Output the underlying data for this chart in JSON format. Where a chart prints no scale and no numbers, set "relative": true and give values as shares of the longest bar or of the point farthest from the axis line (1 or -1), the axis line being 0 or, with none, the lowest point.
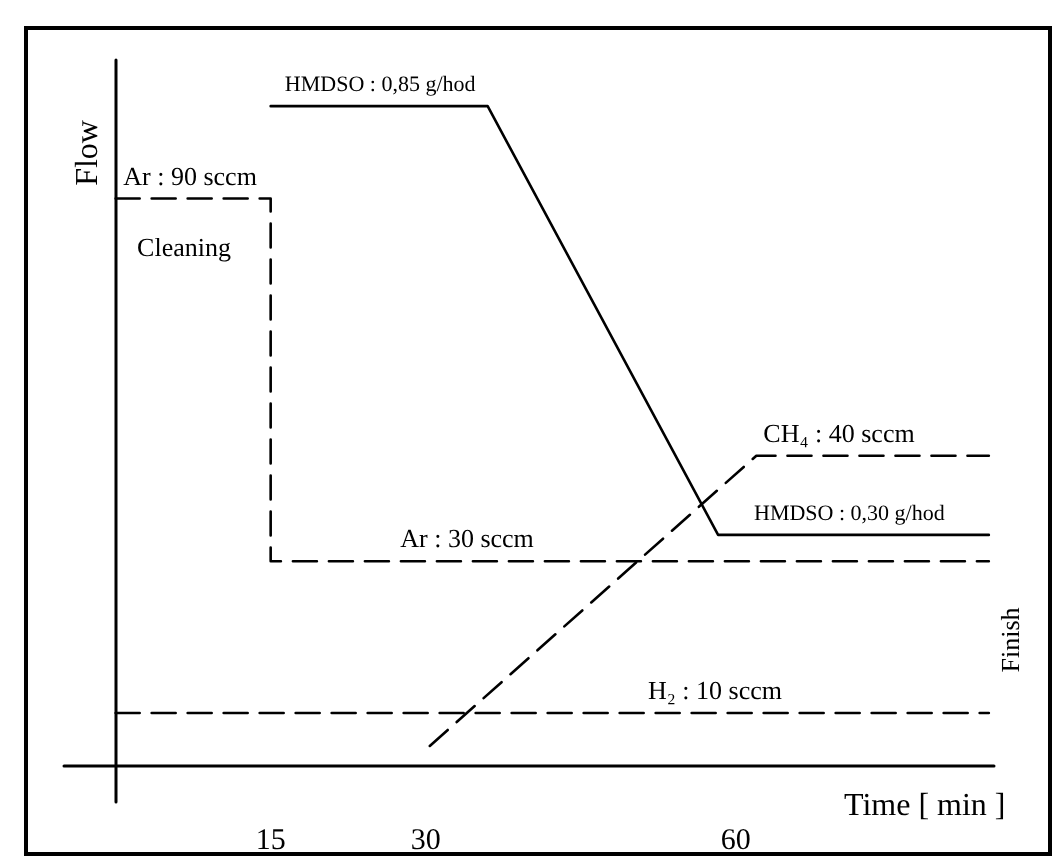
{
  "chart_data": {
    "type": "line",
    "relative": true,
    "ylabel": "Flow",
    "xlabel": "Time [ min ]",
    "xlim": [
      -5,
      85
    ],
    "xticks": [
      15,
      30,
      60
    ],
    "tick_labels": "x",
    "grid": false,
    "marker": "none",
    "series": [
      {
        "color": "#000000",
        "line_style": "solid",
        "x": [
          15,
          36,
          58.3,
          84.5
        ],
        "values": [
          1,
          1,
          0.35,
          0.35
        ]
      },
      {
        "color": "#000000",
        "line_style": "dashed",
        "x": [
          0,
          15,
          15,
          84.5
        ],
        "values": [
          0.86,
          0.86,
          0.31,
          0.31
        ]
      },
      {
        "color": "#000000",
        "line_style": "dashed",
        "x": [
          30.4,
          62,
          84.5
        ],
        "values": [
          0.03,
          0.47,
          0.47
        ]
      },
      {
        "color": "#000000",
        "line_style": "dashed",
        "x": [
          0,
          84.5
        ],
        "values": [
          0.08,
          0.08
        ]
      }
    ],
    "annotations": [
      {
        "text": "HMDSO : 0,85 g/hod",
        "x": 25.6,
        "y": 1
      },
      {
        "text": "Ar : 90 sccm",
        "x": 7.2,
        "y": 0.86
      },
      "Cleaning",
      {
        "text": "HMDSO : 0,30 g/hod",
        "x": 71,
        "y": 0.35
      },
      {
        "text": "CH₄ : 40 sccm",
        "x": 70,
        "y": 0.47
      },
      {
        "text": "Ar : 30 sccm",
        "x": 34,
        "y": 0.31
      },
      {
        "text": "H₂ : 10 sccm",
        "x": 58,
        "y": 0.08
      },
      "Finish"
    ]
  }
}
